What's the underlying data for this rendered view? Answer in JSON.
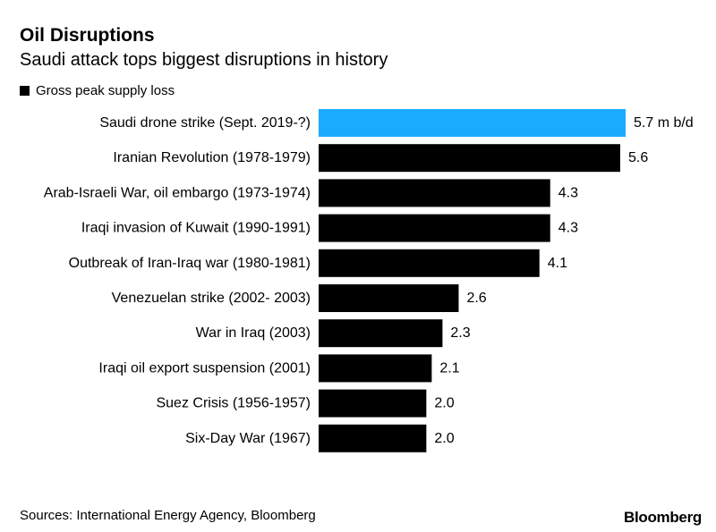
{
  "header": {
    "title": "Oil Disruptions",
    "subtitle": "Saudi attack tops biggest disruptions in history"
  },
  "legend": {
    "label": "Gross peak supply loss"
  },
  "footer": {
    "source": "Sources: International Energy Agency, Bloomberg",
    "brand": "Bloomberg"
  },
  "colors": {
    "highlight": "#1aabff",
    "bar": "#000000"
  },
  "chart_data": {
    "type": "bar",
    "orientation": "horizontal",
    "title": "Oil Disruptions",
    "subtitle": "Saudi attack tops biggest disruptions in history",
    "categories": [
      "Saudi drone strike (Sept. 2019-?)",
      "Iranian Revolution (1978-1979)",
      "Arab-Israeli War, oil embargo (1973-1974)",
      "Iraqi invasion of Kuwait (1990-1991)",
      "Outbreak of Iran-Iraq war (1980-1981)",
      "Venezuelan strike (2002- 2003)",
      "War in Iraq (2003)",
      "Iraqi oil export suspension (2001)",
      "Suez Crisis (1956-1957)",
      "Six-Day War (1967)"
    ],
    "series": [
      {
        "name": "Gross peak supply loss",
        "values": [
          5.7,
          5.6,
          4.3,
          4.3,
          4.1,
          2.6,
          2.3,
          2.1,
          2.0,
          2.0
        ]
      }
    ],
    "value_labels": [
      "5.7 m b/d",
      "5.6",
      "4.3",
      "4.3",
      "4.1",
      "2.6",
      "2.3",
      "2.1",
      "2.0",
      "2.0"
    ],
    "highlight_index": 0,
    "xlim": [
      0,
      5.7
    ],
    "grid": false,
    "legend_position": "top-left"
  }
}
